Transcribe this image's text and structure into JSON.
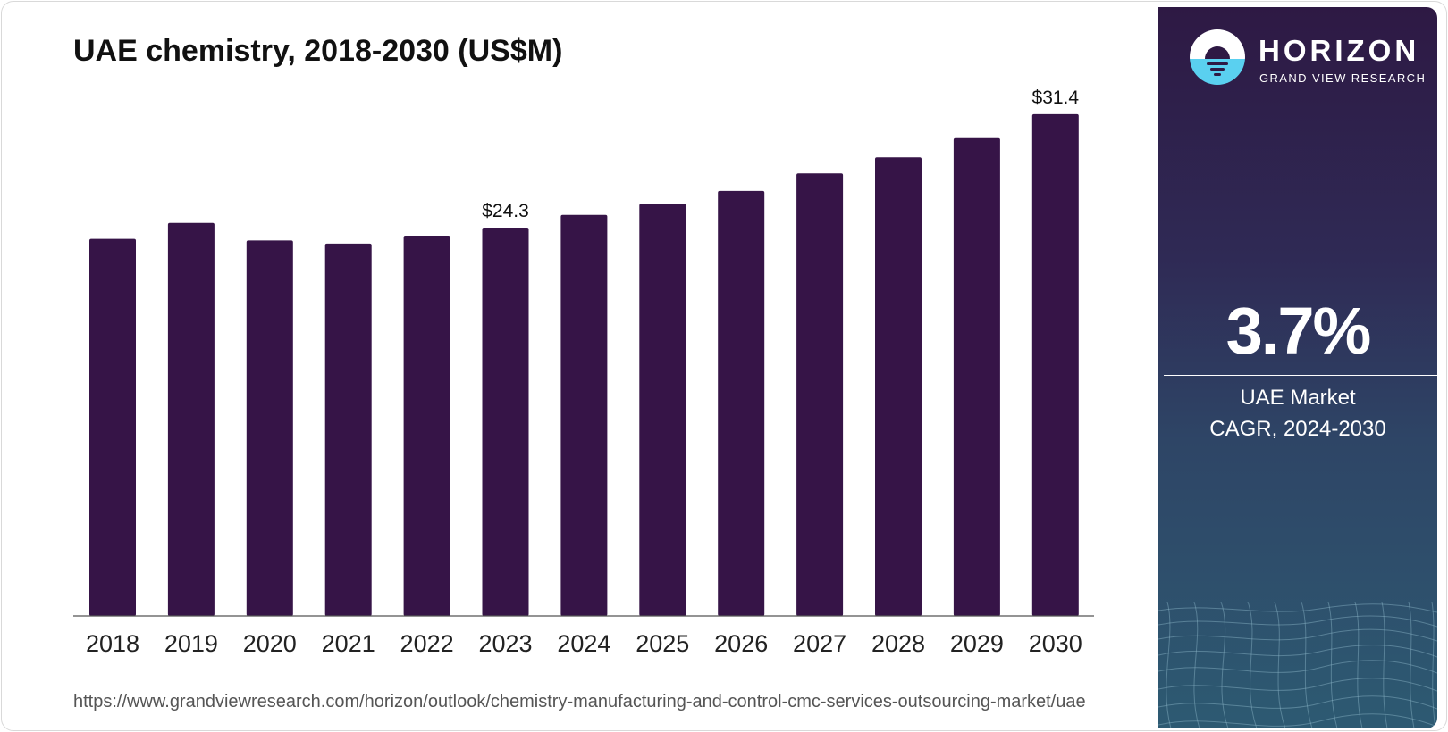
{
  "title": "UAE chemistry, 2018-2030 (US$M)",
  "source_url": "https://www.grandviewresearch.com/horizon/outlook/chemistry-manufacturing-and-control-cmc-services-outsourcing-market/uae",
  "brand": {
    "name": "HORIZON",
    "subtitle": "GRAND VIEW RESEARCH",
    "logo_icon": "horizon-sun-logo"
  },
  "cagr": {
    "value": "3.7%",
    "label_line1": "UAE Market",
    "label_line2": "CAGR, 2024-2030"
  },
  "colors": {
    "bar": "#361447",
    "axis": "#555555",
    "panel_top": "#2e1944",
    "panel_bottom": "#2d5a72",
    "logo_blue": "#5ad0f0"
  },
  "chart_data": {
    "type": "bar",
    "title": "UAE chemistry, 2018-2030 (US$M)",
    "xlabel": "",
    "ylabel": "",
    "categories": [
      "2018",
      "2019",
      "2020",
      "2021",
      "2022",
      "2023",
      "2024",
      "2025",
      "2026",
      "2027",
      "2028",
      "2029",
      "2030"
    ],
    "values": [
      23.6,
      24.6,
      23.5,
      23.3,
      23.8,
      24.3,
      25.1,
      25.8,
      26.6,
      27.7,
      28.7,
      29.9,
      31.4
    ],
    "data_labels": [
      {
        "index": 5,
        "text": "$24.3"
      },
      {
        "index": 12,
        "text": "$31.4"
      }
    ],
    "ylim": [
      0,
      35
    ],
    "grid": false,
    "legend": "none"
  }
}
